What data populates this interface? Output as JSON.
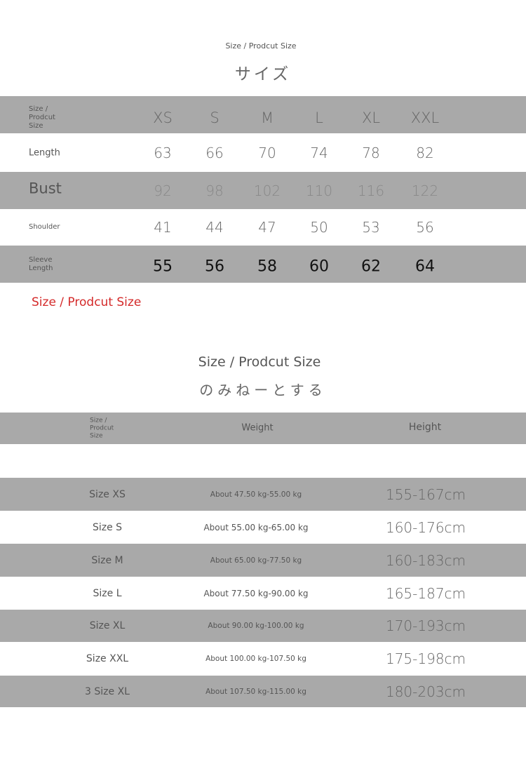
{
  "section1": {
    "subtitle": "Size / Prodcut Size",
    "title": "サイズ",
    "table": {
      "header_label": [
        "Size /",
        "Prodcut",
        "Size"
      ],
      "sizes": [
        "XS",
        "S",
        "M",
        "L",
        "XL",
        "XXL"
      ],
      "rows": [
        {
          "label": [
            "Length"
          ],
          "values": [
            "63",
            "66",
            "70",
            "74",
            "78",
            "82"
          ]
        },
        {
          "label": [
            "Bust"
          ],
          "values": [
            "92",
            "98",
            "102",
            "110",
            "116",
            "122"
          ]
        },
        {
          "label": [
            "Shoulder"
          ],
          "values": [
            "41",
            "44",
            "47",
            "50",
            "53",
            "56"
          ]
        },
        {
          "label": [
            "Sleeve",
            "Length"
          ],
          "values": [
            "55",
            "56",
            "58",
            "60",
            "62",
            "64"
          ]
        }
      ]
    },
    "note": "Size / Prodcut Size",
    "note_color": "#d42a2a"
  },
  "section2": {
    "subtitle": "Size / Prodcut Size",
    "title": "のみねーとする",
    "table": {
      "header_label": [
        "Size /",
        "Prodcut",
        "Size"
      ],
      "columns": [
        "Weight",
        "Height"
      ],
      "rows": [
        {
          "size": "Size XS",
          "weight": "About 47.50 kg-55.00 kg",
          "height": "155-167cm"
        },
        {
          "size": "Size S",
          "weight": "About 55.00 kg-65.00 kg",
          "height": "160-176cm"
        },
        {
          "size": "Size M",
          "weight": "About 65.00 kg-77.50 kg",
          "height": "160-183cm"
        },
        {
          "size": "Size L",
          "weight": "About 77.50 kg-90.00 kg",
          "height": "165-187cm"
        },
        {
          "size": "Size XL",
          "weight": "About 90.00 kg-100.00 kg",
          "height": "170-193cm"
        },
        {
          "size": "Size XXL",
          "weight": "About 100.00 kg-107.50 kg",
          "height": "175-198cm"
        },
        {
          "size": "3 Size XL",
          "weight": "About 107.50 kg-115.00 kg",
          "height": "180-203cm"
        }
      ]
    }
  },
  "colors": {
    "band_gray": "#a9a9a9",
    "text": "#555555"
  }
}
